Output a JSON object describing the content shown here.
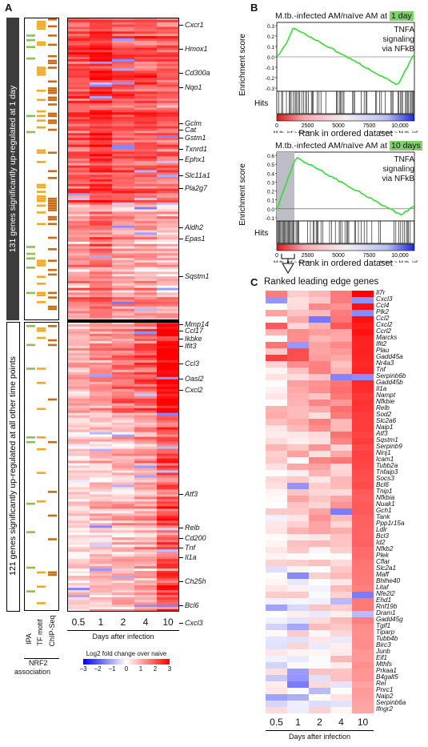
{
  "panels": {
    "a": "A",
    "b": "B",
    "c": "C"
  },
  "panel_a": {
    "group1_label": "131 genes significantly up-regulated at 1 day",
    "group2_label": "121 genes significantly up-regulated  at all other time points",
    "annotation_columns": [
      "IPA",
      "TF motif",
      "ChIP-Seq"
    ],
    "association_header": "NRF2",
    "association_subheader": "association",
    "timepoints": [
      "0.5",
      "1",
      "2",
      "4",
      "10"
    ],
    "xlabel": "Days after infection",
    "genes": [
      {
        "name": "Cxcr1"
      },
      {
        "name": "Hmox1"
      },
      {
        "name": "Cd300a"
      },
      {
        "name": "Nqo1"
      },
      {
        "name": "Gclm"
      },
      {
        "name": "Cat"
      },
      {
        "name": "Gstm1"
      },
      {
        "name": "Txnrd1"
      },
      {
        "name": "Ephx1"
      },
      {
        "name": "Slc11a1"
      },
      {
        "name": "Pla2g7"
      },
      {
        "name": "Aldh2"
      },
      {
        "name": "Epas1"
      },
      {
        "name": "Sqstm1"
      },
      {
        "name": "Mmp14"
      },
      {
        "name": "Ccl17"
      },
      {
        "name": "Ikbke"
      },
      {
        "name": "Ifit3"
      },
      {
        "name": "Ccl3"
      },
      {
        "name": "Oasl2"
      },
      {
        "name": "Cxcl2"
      },
      {
        "name": "Atf3"
      },
      {
        "name": "Relb"
      },
      {
        "name": "Cd200"
      },
      {
        "name": "Tnf"
      },
      {
        "name": "Il1a"
      },
      {
        "name": "Ch25h"
      },
      {
        "name": "Bcl6"
      },
      {
        "name": "Cxcl3"
      }
    ],
    "legend": {
      "title": "Log2 fold change over naive",
      "ticks": [
        "−3",
        "−2",
        "−1",
        "0",
        "1",
        "2",
        "3"
      ]
    }
  },
  "panel_b": {
    "top": {
      "title_prefix": "M.tb.-infected AM/naïve AM at ",
      "highlight": "1 day",
      "geneset_line1": "TNFA signaling",
      "geneset_line2": "via NFkB",
      "y_ticks": [
        "0.3",
        "0.2",
        "0.1",
        "0.0",
        "-0.1",
        "-0.2",
        "-0.3"
      ]
    },
    "bottom": {
      "title_prefix": "M.tb.-infected AM/naïve AM at ",
      "highlight": "10 days",
      "geneset_line1": "TNFA signaling",
      "geneset_line2": "via NFkB",
      "y_ticks": [
        "0.6",
        "0.5",
        "0.4",
        "0.3",
        "0.2",
        "0.1",
        "0.0",
        "-0.1"
      ]
    },
    "ylabel": "Enrichment score",
    "hits_label": "Hits",
    "x_ticks": [
      "0",
      "2500",
      "5000",
      "7500",
      "10,000"
    ],
    "left_end": "M.tb.-inf > naive",
    "right_end": "Naive > M.tb.-inf",
    "xlabel": "Rank in ordered dataset"
  },
  "panel_c": {
    "title": "Ranked leading edge genes",
    "timepoints": [
      "0.5",
      "1",
      "2",
      "4",
      "10"
    ],
    "xlabel": "Days after infection",
    "genes": [
      "Il7r",
      "Cxcl3",
      "Ccl4",
      "Plk2",
      "Ccl2",
      "Cxcl2",
      "Ccrl2",
      "Marcks",
      "Ifit2",
      "Plau",
      "Gadd45a",
      "Nr4a3",
      "Tnf",
      "Serpinb6b",
      "Gadd45b",
      "Il1a",
      "Nampt",
      "Nfkbie",
      "Relb",
      "Sod2",
      "Slc2a6",
      "Naip1",
      "Atf3",
      "Sqstm1",
      "Serpinb9",
      "Ninj1",
      "Icam1",
      "Tubb2a",
      "Tnfaip3",
      "Socs3",
      "Bcl6",
      "Tnip1",
      "Nfkbia",
      "Nuak1",
      "Gch1",
      "Tank",
      "Ppp1r15a",
      "Ldlr",
      "Bcl3",
      "Id2",
      "Nfkb2",
      "Plek",
      "Cflar",
      "Slc2a1",
      "Maff",
      "Bhlhe40",
      "Litaf",
      "Nfe2l2",
      "Ehd1",
      "Rnf19b",
      "Dram1",
      "Gadd45g",
      "Tgif1",
      "Tiparp",
      "Tubb4b",
      "Birc3",
      "Junb",
      "Eif1",
      "Mthfs",
      "Prkaa1",
      "B4galt5",
      "Rel",
      "Pnrc1",
      "Naip2",
      "Serpinb6a",
      "Ifngr2"
    ]
  },
  "colors": {
    "up": "#ff0000",
    "down": "#0000ff",
    "mid": "#ffffff",
    "es_line": "#33dd33",
    "highlight": "#7fd16a"
  }
}
